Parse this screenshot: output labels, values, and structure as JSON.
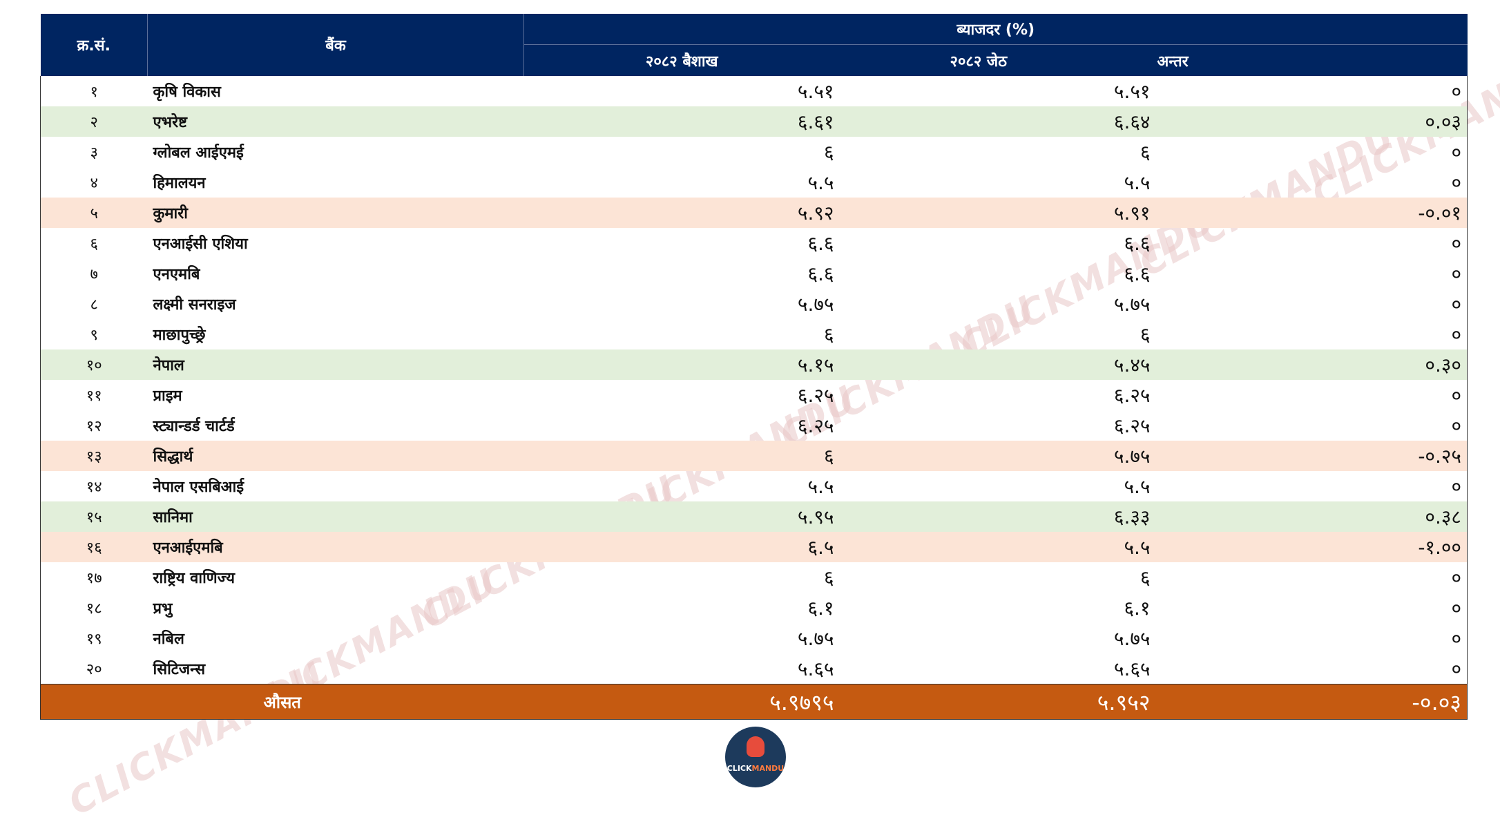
{
  "header": {
    "sn": "क्र.सं.",
    "bank": "बैंक",
    "group": "ब्याजदर (%)",
    "col_baisakh": "२०८२ बैशाख",
    "col_jeth": "२०८२ जेठ",
    "col_diff": "अन्तर"
  },
  "rows": [
    {
      "sn": "१",
      "bank": "कृषि विकास",
      "baisakh": "५.५१",
      "jeth": "५.५१",
      "diff": "०"
    },
    {
      "sn": "२",
      "bank": "एभरेष्ट",
      "baisakh": "६.६१",
      "jeth": "६.६४",
      "diff": "०.०३"
    },
    {
      "sn": "३",
      "bank": "ग्लोबल आईएमई",
      "baisakh": "६",
      "jeth": "६",
      "diff": "०"
    },
    {
      "sn": "४",
      "bank": "हिमालयन",
      "baisakh": "५.५",
      "jeth": "५.५",
      "diff": "०"
    },
    {
      "sn": "५",
      "bank": "कुमारी",
      "baisakh": "५.९२",
      "jeth": "५.९१",
      "diff": "-०.०१"
    },
    {
      "sn": "६",
      "bank": "एनआईसी एशिया",
      "baisakh": "६.६",
      "jeth": "६.६",
      "diff": "०"
    },
    {
      "sn": "७",
      "bank": "एनएमबि",
      "baisakh": "६.६",
      "jeth": "६.६",
      "diff": "०"
    },
    {
      "sn": "८",
      "bank": "लक्ष्मी सनराइज",
      "baisakh": "५.७५",
      "jeth": "५.७५",
      "diff": "०"
    },
    {
      "sn": "९",
      "bank": "माछापुच्छ्रे",
      "baisakh": "६",
      "jeth": "६",
      "diff": "०"
    },
    {
      "sn": "१०",
      "bank": "नेपाल",
      "baisakh": "५.१५",
      "jeth": "५.४५",
      "diff": "०.३०"
    },
    {
      "sn": "११",
      "bank": "प्राइम",
      "baisakh": "६.२५",
      "jeth": "६.२५",
      "diff": "०"
    },
    {
      "sn": "१२",
      "bank": "स्ट्यान्डर्ड चार्टर्ड",
      "baisakh": "६.२५",
      "jeth": "६.२५",
      "diff": "०"
    },
    {
      "sn": "१३",
      "bank": "सिद्धार्थ",
      "baisakh": "६",
      "jeth": "५.७५",
      "diff": "-०.२५"
    },
    {
      "sn": "१४",
      "bank": "नेपाल एसबिआई",
      "baisakh": "५.५",
      "jeth": "५.५",
      "diff": "०"
    },
    {
      "sn": "१५",
      "bank": "सानिमा",
      "baisakh": "५.९५",
      "jeth": "६.३३",
      "diff": "०.३८"
    },
    {
      "sn": "१६",
      "bank": "एनआईएमबि",
      "baisakh": "६.५",
      "jeth": "५.५",
      "diff": "-१.००"
    },
    {
      "sn": "१७",
      "bank": " राष्ट्रिय वाणिज्य",
      "baisakh": "६",
      "jeth": "६",
      "diff": "०"
    },
    {
      "sn": "१८",
      "bank": "प्रभु",
      "baisakh": "६.१",
      "jeth": "६.१",
      "diff": "०"
    },
    {
      "sn": "१९",
      "bank": "नबिल",
      "baisakh": "५.७५",
      "jeth": "५.७५",
      "diff": "०"
    },
    {
      "sn": "२०",
      "bank": "सिटिजन्स",
      "baisakh": "५.६५",
      "jeth": "५.६५",
      "diff": "०"
    }
  ],
  "average": {
    "label": "औसत",
    "baisakh": "५.९७९५",
    "jeth": "५.९५२",
    "diff": "-०.०३"
  },
  "watermark": {
    "text": "CLICKMANDU"
  },
  "logo": {
    "text_a": "CLICK",
    "text_b": "MANDU",
    "icon": "hand-pointer-icon"
  },
  "colors": {
    "header_bg": "#002561",
    "green_row": "#e2efda",
    "peach_row": "#fce4d6",
    "average_bg": "#c55a11"
  }
}
